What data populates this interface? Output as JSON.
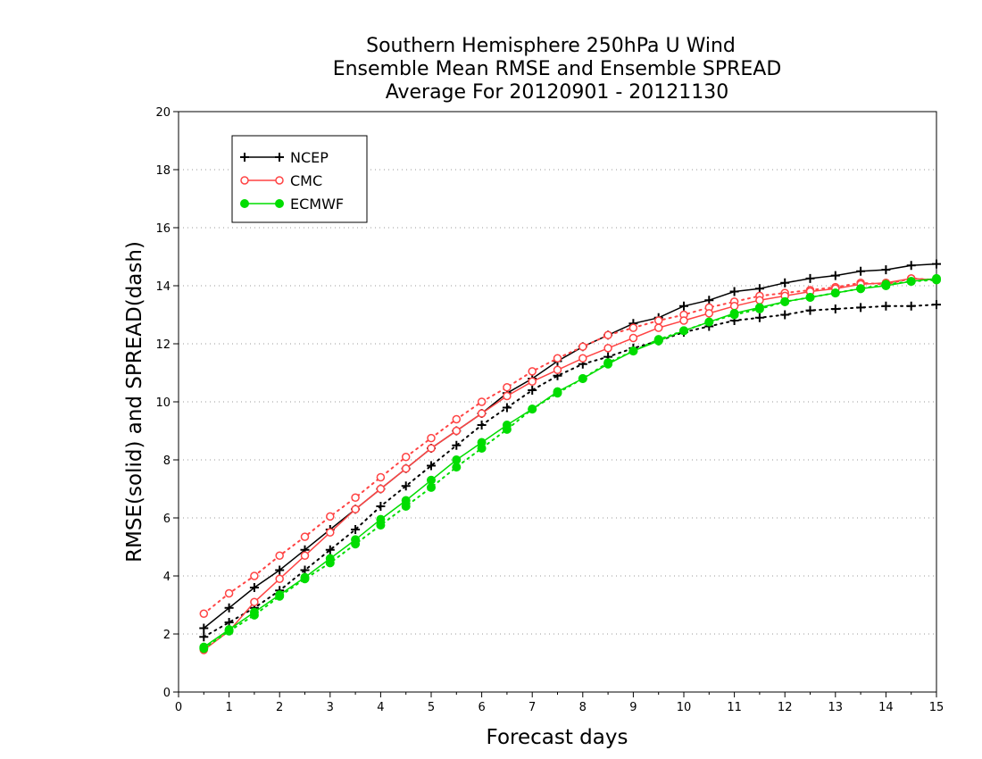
{
  "chart_data": {
    "type": "line",
    "title": [
      "Southern Hemisphere 250hPa U Wind",
      "Ensemble Mean RMSE and Ensemble SPREAD",
      "Average For 20120901 - 20121130"
    ],
    "xlabel": "Forecast days",
    "ylabel": "RMSE(solid) and SPREAD(dash)",
    "xlim": [
      0,
      15
    ],
    "ylim": [
      0,
      20
    ],
    "xticks": [
      "0",
      "1",
      "2",
      "3",
      "4",
      "5",
      "6",
      "7",
      "8",
      "9",
      "10",
      "11",
      "12",
      "13",
      "14",
      "15"
    ],
    "yticks": [
      "0",
      "2",
      "4",
      "6",
      "8",
      "10",
      "12",
      "14",
      "16",
      "18",
      "20"
    ],
    "grid": "dotted horizontal",
    "legend_position": "top-left",
    "x": [
      0.5,
      1,
      1.5,
      2,
      2.5,
      3,
      3.5,
      4,
      4.5,
      5,
      5.5,
      6,
      6.5,
      7,
      7.5,
      8,
      8.5,
      9,
      9.5,
      10,
      10.5,
      11,
      11.5,
      12,
      12.5,
      13,
      13.5,
      14,
      14.5,
      15
    ],
    "series": [
      {
        "name": "NCEP",
        "color": "#000000",
        "marker": "plus",
        "rmse": [
          2.2,
          2.9,
          3.6,
          4.2,
          4.9,
          5.6,
          6.3,
          7.0,
          7.7,
          8.4,
          9.0,
          9.6,
          10.3,
          10.8,
          11.4,
          11.9,
          12.3,
          12.7,
          12.9,
          13.3,
          13.5,
          13.8,
          13.9,
          14.1,
          14.25,
          14.35,
          14.5,
          14.55,
          14.7,
          14.75
        ],
        "spread": [
          1.9,
          2.4,
          2.9,
          3.5,
          4.2,
          4.9,
          5.6,
          6.4,
          7.1,
          7.8,
          8.5,
          9.2,
          9.8,
          10.4,
          10.9,
          11.3,
          11.55,
          11.85,
          12.1,
          12.4,
          12.6,
          12.8,
          12.9,
          13.0,
          13.15,
          13.2,
          13.25,
          13.3,
          13.3,
          13.35
        ]
      },
      {
        "name": "CMC",
        "color": "#ff4444",
        "marker": "open-circle",
        "rmse": [
          1.45,
          2.1,
          3.1,
          3.9,
          4.7,
          5.5,
          6.3,
          7.0,
          7.7,
          8.4,
          9.0,
          9.6,
          10.2,
          10.7,
          11.1,
          11.5,
          11.85,
          12.2,
          12.55,
          12.8,
          13.05,
          13.3,
          13.5,
          13.65,
          13.8,
          13.9,
          14.05,
          14.1,
          14.25,
          14.2
        ],
        "spread": [
          2.7,
          3.4,
          4.0,
          4.7,
          5.35,
          6.05,
          6.7,
          7.4,
          8.1,
          8.75,
          9.4,
          10.0,
          10.5,
          11.05,
          11.5,
          11.9,
          12.3,
          12.55,
          12.8,
          13.0,
          13.25,
          13.45,
          13.65,
          13.75,
          13.85,
          13.95,
          14.1,
          14.05,
          14.25,
          14.2
        ]
      },
      {
        "name": "ECMWF",
        "color": "#00dd00",
        "marker": "filled-circle",
        "rmse": [
          1.55,
          2.15,
          2.75,
          3.35,
          3.95,
          4.6,
          5.25,
          5.95,
          6.6,
          7.3,
          8.0,
          8.6,
          9.2,
          9.75,
          10.35,
          10.8,
          11.3,
          11.75,
          12.1,
          12.45,
          12.75,
          13.05,
          13.25,
          13.45,
          13.6,
          13.75,
          13.9,
          14.0,
          14.15,
          14.25
        ],
        "spread": [
          1.5,
          2.1,
          2.65,
          3.3,
          3.9,
          4.45,
          5.1,
          5.75,
          6.4,
          7.05,
          7.75,
          8.4,
          9.05,
          9.75,
          10.3,
          10.8,
          11.35,
          11.75,
          12.15,
          12.45,
          12.75,
          13.0,
          13.2,
          13.45,
          13.6,
          13.75,
          13.9,
          14.05,
          14.15,
          14.2
        ]
      }
    ]
  }
}
